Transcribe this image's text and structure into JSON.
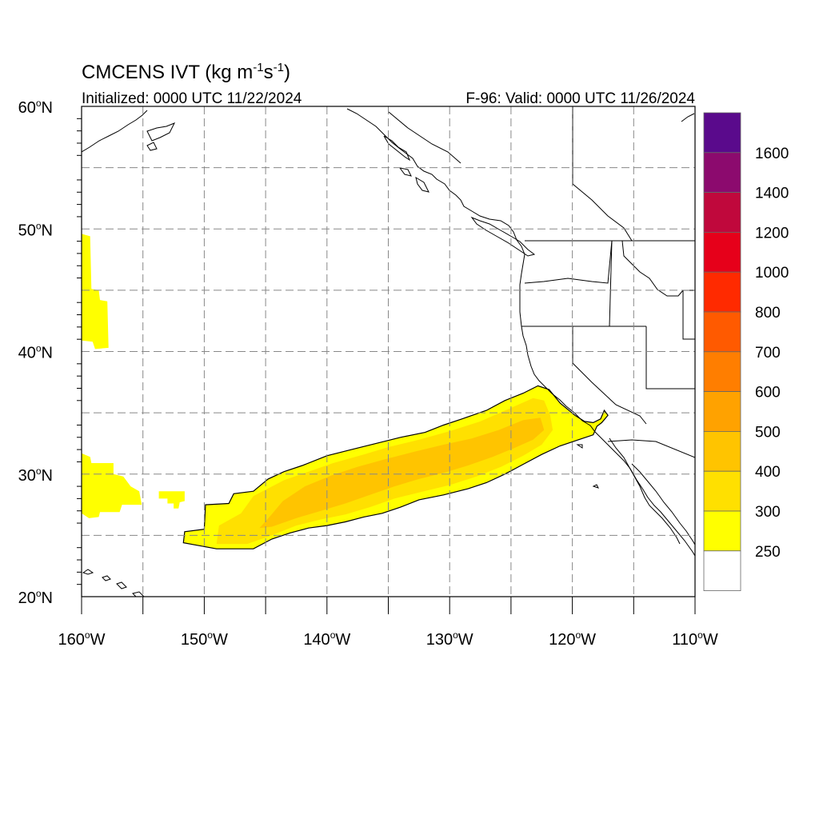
{
  "title": {
    "main": "CMCENS IVT (kg m",
    "sup1": "-1",
    "mid": "s",
    "sup2": "-1",
    "end": ")"
  },
  "subtitle_left": "Initialized: 0000 UTC 11/22/2024",
  "subtitle_right": "F-96: Valid: 0000 UTC 11/26/2024",
  "map": {
    "lon_range": [
      -160,
      -110
    ],
    "lat_range": [
      20,
      60
    ],
    "lat_labels": [
      {
        "lat": 60,
        "num": "60",
        "hemi": "N"
      },
      {
        "lat": 50,
        "num": "50",
        "hemi": "N"
      },
      {
        "lat": 40,
        "num": "40",
        "hemi": "N"
      },
      {
        "lat": 30,
        "num": "30",
        "hemi": "N"
      },
      {
        "lat": 20,
        "num": "20",
        "hemi": "N"
      }
    ],
    "lon_labels": [
      {
        "lon": -160,
        "num": "160",
        "hemi": "W"
      },
      {
        "lon": -150,
        "num": "150",
        "hemi": "W"
      },
      {
        "lon": -140,
        "num": "140",
        "hemi": "W"
      },
      {
        "lon": -130,
        "num": "130",
        "hemi": "W"
      },
      {
        "lon": -120,
        "num": "120",
        "hemi": "W"
      },
      {
        "lon": -110,
        "num": "110",
        "hemi": "W"
      }
    ]
  },
  "colorbar": {
    "labels": [
      "1600",
      "1400",
      "1200",
      "1000",
      "800",
      "700",
      "600",
      "500",
      "400",
      "300",
      "250"
    ],
    "colors": [
      "#5a0a8c",
      "#8c0a6e",
      "#c0083c",
      "#e6001a",
      "#ff2a00",
      "#ff5a00",
      "#ff7e00",
      "#ffa200",
      "#ffc400",
      "#ffe000",
      "#ffff00",
      "#ffffff"
    ]
  },
  "ivt_colors": {
    "250": "#ffff00",
    "300": "#ffe000",
    "400": "#ffc400",
    "500": "#ffa200"
  }
}
